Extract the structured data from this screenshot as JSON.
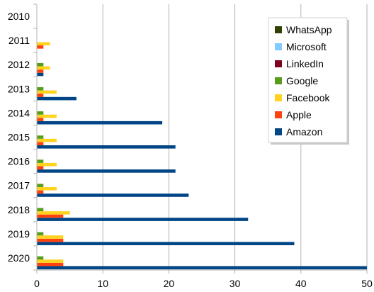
{
  "chart_data": {
    "type": "bar",
    "orientation": "horizontal",
    "categories": [
      "2010",
      "2011",
      "2012",
      "2013",
      "2014",
      "2015",
      "2016",
      "2017",
      "2018",
      "2019",
      "2020"
    ],
    "series": [
      {
        "name": "Amazon",
        "color": "#004586",
        "values": [
          0,
          0,
          1,
          6,
          19,
          21,
          21,
          23,
          32,
          39,
          50
        ]
      },
      {
        "name": "Apple",
        "color": "#ff420e",
        "values": [
          0,
          1,
          1,
          1,
          1,
          1,
          1,
          1,
          4,
          4,
          4
        ]
      },
      {
        "name": "Facebook",
        "color": "#ffd320",
        "values": [
          0,
          2,
          2,
          3,
          3,
          3,
          3,
          3,
          5,
          4,
          4
        ]
      },
      {
        "name": "Google",
        "color": "#579d1c",
        "values": [
          0,
          0,
          1,
          1,
          1,
          1,
          1,
          1,
          1,
          1,
          1
        ]
      },
      {
        "name": "LinkedIn",
        "color": "#7e0021",
        "values": [
          0,
          0,
          0,
          0,
          0,
          0,
          0,
          0,
          0,
          0,
          0
        ]
      },
      {
        "name": "Microsoft",
        "color": "#83caff",
        "values": [
          0,
          0,
          0,
          0,
          0,
          0,
          0,
          0,
          0,
          0,
          0
        ]
      },
      {
        "name": "WhatsApp",
        "color": "#314004",
        "values": [
          0,
          0,
          0,
          0,
          0,
          0,
          0,
          0,
          0,
          0,
          0
        ]
      }
    ],
    "xlim": [
      0,
      50
    ],
    "xticks": [
      "0",
      "10",
      "20",
      "30",
      "40",
      "50"
    ],
    "grid": "vertical",
    "legend_position": "top-right",
    "legend_order": [
      "WhatsApp",
      "Microsoft",
      "LinkedIn",
      "Google",
      "Facebook",
      "Apple",
      "Amazon"
    ],
    "title": "",
    "xlabel": "",
    "ylabel": ""
  }
}
